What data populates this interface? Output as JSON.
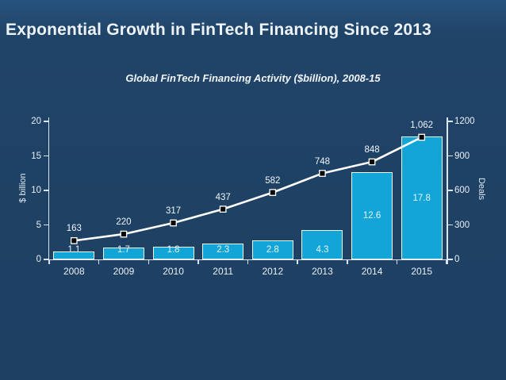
{
  "slide": {
    "title": "Exponential Growth in FinTech Financing Since 2013",
    "background_color": "#1e4164",
    "text_color": "#eef3f8"
  },
  "chart_data": {
    "type": "combo-bar-line",
    "title": "Global FinTech Financing Activity ($billion), 2008-15",
    "categories": [
      "2008",
      "2009",
      "2010",
      "2011",
      "2012",
      "2013",
      "2014",
      "2015"
    ],
    "series": [
      {
        "name": "Financing ($ billion)",
        "chart_type": "bar",
        "axis": "left",
        "color": "#14a5d8",
        "border_color": "#eef9fd",
        "values": [
          1.1,
          1.7,
          1.8,
          2.3,
          2.8,
          4.3,
          12.6,
          17.8
        ],
        "labels": [
          "1.1",
          "1.7",
          "1.8",
          "2.3",
          "2.8",
          "4.3",
          "12.6",
          "17.8"
        ]
      },
      {
        "name": "Deals",
        "chart_type": "line",
        "axis": "right",
        "color": "#ffffff",
        "marker": "black-square-white-outline",
        "values": [
          163,
          220,
          317,
          437,
          582,
          748,
          848,
          1062
        ],
        "labels": [
          "163",
          "220",
          "317",
          "437",
          "582",
          "748",
          "848",
          "1,062"
        ]
      }
    ],
    "left_axis": {
      "title": "$ billion",
      "range": [
        0,
        20
      ],
      "ticks": [
        0,
        5,
        10,
        15,
        20
      ],
      "tick_labels": [
        "0",
        "5",
        "10",
        "15",
        "20"
      ]
    },
    "right_axis": {
      "title": "Deals",
      "range": [
        0,
        1200
      ],
      "ticks": [
        0,
        300,
        600,
        900,
        1200
      ],
      "tick_labels": [
        "0",
        "300",
        "600",
        "900",
        "1200"
      ]
    },
    "legend": "none",
    "grid": false
  }
}
